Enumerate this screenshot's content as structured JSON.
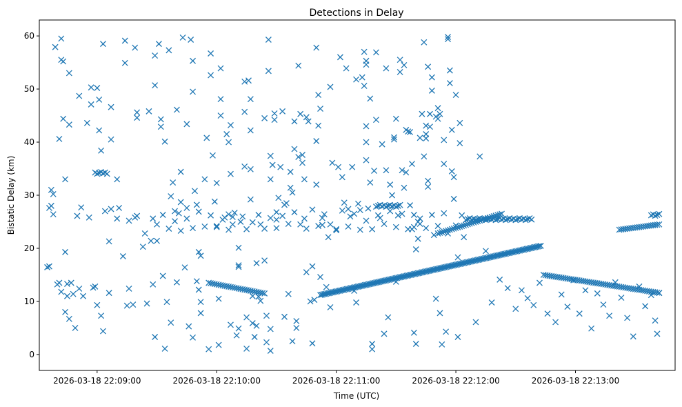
{
  "chart_data": {
    "type": "scatter",
    "title": "Detections in Delay",
    "xlabel": "Time (UTC)",
    "ylabel": "Bistatic Delay (km)",
    "marker": "x",
    "marker_color": "#1f77b4",
    "x_unit": "seconds after 2026-03-18 22:08:00",
    "xlim": [
      31,
      350
    ],
    "ylim": [
      -3,
      63
    ],
    "x_ticks": [
      {
        "value": 60,
        "label": "2026-03-18 22:09:00"
      },
      {
        "value": 120,
        "label": "2026-03-18 22:10:00"
      },
      {
        "value": 180,
        "label": "2026-03-18 22:11:00"
      },
      {
        "value": 240,
        "label": "2026-03-18 22:12:00"
      },
      {
        "value": 300,
        "label": "2026-03-18 22:13:00"
      }
    ],
    "y_ticks": [
      {
        "value": 0,
        "label": "0"
      },
      {
        "value": 10,
        "label": "10"
      },
      {
        "value": 20,
        "label": "20"
      },
      {
        "value": 30,
        "label": "30"
      },
      {
        "value": 40,
        "label": "40"
      },
      {
        "value": 50,
        "label": "50"
      },
      {
        "value": 60,
        "label": "60"
      }
    ],
    "grid": false,
    "legend": "none",
    "tracks": [
      {
        "name": "lower track A",
        "x_start": 116,
        "x_end": 144,
        "y_start": 13.5,
        "y_end": 11.5,
        "step": 1
      },
      {
        "name": "lower track B",
        "x_start": 172,
        "x_end": 283,
        "y_start": 11.2,
        "y_end": 20.5,
        "step": 0.7
      },
      {
        "name": "lower track C",
        "x_start": 284,
        "x_end": 342,
        "y_start": 15.0,
        "y_end": 11.6,
        "step": 1
      },
      {
        "name": "upper track A",
        "x_start": 231,
        "x_end": 263,
        "y_start": 22.8,
        "y_end": 26.5,
        "step": 1
      },
      {
        "name": "upper track B",
        "x_start": 322,
        "x_end": 342,
        "y_start": 23.5,
        "y_end": 24.5,
        "step": 1
      }
    ],
    "clusters": [
      {
        "name": "cluster near 34 km",
        "x_start": 59,
        "x_end": 65,
        "y": 34.2
      },
      {
        "name": "cluster near 28 km",
        "x_start": 200,
        "x_end": 212,
        "y": 28.0
      },
      {
        "name": "cluster near 25.5 km",
        "x_start": 245,
        "x_end": 278,
        "y": 25.5
      },
      {
        "name": "cluster near 26.5 km",
        "x_start": 338,
        "x_end": 342,
        "y": 26.3
      },
      {
        "name": "cluster near 16.6 km",
        "x_start": 35,
        "x_end": 36,
        "y": 16.6
      }
    ],
    "points": [
      [
        36,
        27.6
      ],
      [
        37,
        31.0
      ],
      [
        37,
        28.0
      ],
      [
        38,
        26.4
      ],
      [
        38,
        30.2
      ],
      [
        39,
        57.9
      ],
      [
        40,
        13.2
      ],
      [
        41,
        13.5
      ],
      [
        42,
        11.8
      ],
      [
        41,
        40.6
      ],
      [
        42,
        59.5
      ],
      [
        42,
        55.5
      ],
      [
        43,
        44.4
      ],
      [
        43,
        55.2
      ],
      [
        44,
        33.0
      ],
      [
        46,
        53.0
      ],
      [
        46,
        6.7
      ],
      [
        46,
        43.3
      ],
      [
        44,
        8.0
      ],
      [
        44,
        19.3
      ],
      [
        45,
        11.0
      ],
      [
        45,
        13.3
      ],
      [
        47,
        13.5
      ],
      [
        48,
        11.4
      ],
      [
        49,
        5.0
      ],
      [
        50,
        26.1
      ],
      [
        51,
        12.4
      ],
      [
        51,
        48.7
      ],
      [
        52,
        27.7
      ],
      [
        53,
        11.0
      ],
      [
        55,
        43.6
      ],
      [
        56,
        25.8
      ],
      [
        57,
        50.3
      ],
      [
        57,
        47.1
      ],
      [
        58,
        12.6
      ],
      [
        59,
        12.8
      ],
      [
        60,
        9.3
      ],
      [
        60,
        50.2
      ],
      [
        61,
        48.0
      ],
      [
        61,
        42.2
      ],
      [
        62,
        38.4
      ],
      [
        62,
        7.3
      ],
      [
        63,
        4.4
      ],
      [
        63,
        58.5
      ],
      [
        64,
        27.0
      ],
      [
        66,
        21.3
      ],
      [
        66,
        11.6
      ],
      [
        67,
        40.5
      ],
      [
        67,
        46.6
      ],
      [
        67,
        27.4
      ],
      [
        70,
        33.0
      ],
      [
        70,
        25.6
      ],
      [
        71,
        27.6
      ],
      [
        73,
        18.5
      ],
      [
        74,
        59.1
      ],
      [
        74,
        54.9
      ],
      [
        75,
        9.2
      ],
      [
        76,
        12.4
      ],
      [
        76,
        25.2
      ],
      [
        78,
        9.4
      ],
      [
        79,
        25.8
      ],
      [
        79,
        57.8
      ],
      [
        80,
        45.6
      ],
      [
        80,
        44.6
      ],
      [
        80,
        26.1
      ],
      [
        83,
        20.3
      ],
      [
        84,
        22.8
      ],
      [
        85,
        9.6
      ],
      [
        86,
        45.8
      ],
      [
        87,
        21.4
      ],
      [
        88,
        25.6
      ],
      [
        88,
        13.2
      ],
      [
        89,
        56.3
      ],
      [
        89,
        3.3
      ],
      [
        89,
        50.7
      ],
      [
        90,
        21.4
      ],
      [
        91,
        58.5
      ],
      [
        92,
        42.9
      ],
      [
        92,
        44.3
      ],
      [
        93,
        14.8
      ],
      [
        94,
        40.1
      ],
      [
        94,
        1.1
      ],
      [
        95,
        9.9
      ],
      [
        96,
        57.3
      ],
      [
        97,
        6.0
      ],
      [
        97,
        29.8
      ],
      [
        98,
        32.4
      ],
      [
        99,
        25.1
      ],
      [
        100,
        46.1
      ],
      [
        100,
        13.6
      ],
      [
        101,
        26.6
      ],
      [
        102,
        28.7
      ],
      [
        102,
        34.4
      ],
      [
        103,
        59.7
      ],
      [
        104,
        16.4
      ],
      [
        105,
        43.4
      ],
      [
        105,
        27.6
      ],
      [
        106,
        5.3
      ],
      [
        107,
        59.3
      ],
      [
        108,
        55.3
      ],
      [
        108,
        49.5
      ],
      [
        108,
        3.2
      ],
      [
        109,
        30.8
      ],
      [
        110,
        13.8
      ],
      [
        110,
        28.2
      ],
      [
        111,
        19.3
      ],
      [
        111,
        12.2
      ],
      [
        112,
        18.6
      ],
      [
        112,
        9.9
      ],
      [
        112,
        7.8
      ],
      [
        114,
        33.0
      ],
      [
        115,
        40.8
      ],
      [
        116,
        1.0
      ],
      [
        117,
        56.7
      ],
      [
        117,
        52.6
      ],
      [
        118,
        37.5
      ],
      [
        119,
        28.8
      ],
      [
        120,
        32.3
      ],
      [
        120,
        24.2
      ],
      [
        121,
        1.8
      ],
      [
        121,
        10.5
      ],
      [
        122,
        53.9
      ],
      [
        122,
        45.0
      ],
      [
        122,
        48.1
      ],
      [
        124,
        25.8
      ],
      [
        125,
        41.5
      ],
      [
        126,
        26.4
      ],
      [
        126,
        40.0
      ],
      [
        127,
        43.2
      ],
      [
        127,
        5.6
      ],
      [
        127,
        34.0
      ],
      [
        128,
        24.5
      ],
      [
        128,
        25.9
      ],
      [
        130,
        3.6
      ],
      [
        131,
        4.9
      ],
      [
        131,
        20.1
      ],
      [
        131,
        16.8
      ],
      [
        131,
        16.5
      ],
      [
        133,
        26.0
      ],
      [
        134,
        51.4
      ],
      [
        134,
        45.7
      ],
      [
        134,
        35.4
      ],
      [
        135,
        1.1
      ],
      [
        135,
        7.0
      ],
      [
        136,
        51.6
      ],
      [
        137,
        48.1
      ],
      [
        137,
        34.9
      ],
      [
        137,
        29.2
      ],
      [
        137,
        42.2
      ],
      [
        138,
        11.0
      ],
      [
        138,
        5.9
      ],
      [
        139,
        3.3
      ],
      [
        140,
        17.2
      ],
      [
        140,
        5.4
      ],
      [
        141,
        10.9
      ],
      [
        142,
        10.1
      ],
      [
        142,
        24.5
      ],
      [
        144,
        17.7
      ],
      [
        144,
        44.5
      ],
      [
        145,
        7.3
      ],
      [
        145,
        2.3
      ],
      [
        146,
        59.3
      ],
      [
        146,
        53.4
      ],
      [
        147,
        0.7
      ],
      [
        147,
        4.8
      ],
      [
        147,
        33.0
      ],
      [
        147,
        37.4
      ],
      [
        148,
        35.7
      ],
      [
        149,
        45.4
      ],
      [
        149,
        44.2
      ],
      [
        150,
        26.8
      ],
      [
        150,
        25.4
      ],
      [
        151,
        29.5
      ],
      [
        152,
        35.3
      ],
      [
        153,
        45.8
      ],
      [
        154,
        7.1
      ],
      [
        154,
        28.2
      ],
      [
        155,
        28.5
      ],
      [
        156,
        11.4
      ],
      [
        157,
        34.4
      ],
      [
        157,
        31.4
      ],
      [
        158,
        30.5
      ],
      [
        158,
        2.5
      ],
      [
        159,
        38.7
      ],
      [
        159,
        43.9
      ],
      [
        160,
        5.0
      ],
      [
        160,
        6.3
      ],
      [
        161,
        37.2
      ],
      [
        161,
        54.4
      ],
      [
        162,
        45.3
      ],
      [
        163,
        36.1
      ],
      [
        163,
        37.6
      ],
      [
        164,
        25.6
      ],
      [
        164,
        33.0
      ],
      [
        165,
        15.5
      ],
      [
        165,
        44.7
      ],
      [
        166,
        43.9
      ],
      [
        167,
        10.0
      ],
      [
        168,
        2.1
      ],
      [
        168,
        16.6
      ],
      [
        169,
        10.3
      ],
      [
        170,
        57.8
      ],
      [
        170,
        32.0
      ],
      [
        170,
        40.2
      ],
      [
        171,
        43.1
      ],
      [
        171,
        48.9
      ],
      [
        172,
        46.3
      ],
      [
        172,
        14.6
      ],
      [
        173,
        25.7
      ],
      [
        173,
        24.4
      ],
      [
        175,
        12.7
      ],
      [
        176,
        22.1
      ],
      [
        177,
        8.9
      ],
      [
        177,
        50.4
      ],
      [
        178,
        36.1
      ],
      [
        180,
        23.6
      ],
      [
        181,
        35.3
      ],
      [
        182,
        56.0
      ],
      [
        183,
        33.4
      ],
      [
        184,
        28.6
      ],
      [
        185,
        53.9
      ],
      [
        186,
        27.4
      ],
      [
        187,
        26.0
      ],
      [
        188,
        35.3
      ],
      [
        189,
        12.0
      ],
      [
        190,
        9.8
      ],
      [
        190,
        51.8
      ],
      [
        191,
        28.4
      ],
      [
        192,
        27.2
      ],
      [
        193,
        52.2
      ],
      [
        194,
        50.6
      ],
      [
        194,
        57.0
      ],
      [
        195,
        55.3
      ],
      [
        195,
        54.6
      ],
      [
        195,
        43.0
      ],
      [
        195,
        40.0
      ],
      [
        195,
        36.6
      ],
      [
        196,
        27.5
      ],
      [
        197,
        32.4
      ],
      [
        197,
        48.2
      ],
      [
        198,
        1.0
      ],
      [
        198,
        2.0
      ],
      [
        199,
        34.6
      ],
      [
        200,
        44.2
      ],
      [
        200,
        56.9
      ],
      [
        202,
        25.7
      ],
      [
        203,
        39.6
      ],
      [
        204,
        3.9
      ],
      [
        205,
        34.7
      ],
      [
        205,
        53.9
      ],
      [
        206,
        7.0
      ],
      [
        207,
        32.0
      ],
      [
        208,
        30.0
      ],
      [
        209,
        40.9
      ],
      [
        209,
        40.5
      ],
      [
        210,
        44.4
      ],
      [
        210,
        13.7
      ],
      [
        211,
        26.2
      ],
      [
        212,
        55.5
      ],
      [
        212,
        53.2
      ],
      [
        213,
        34.7
      ],
      [
        214,
        54.5
      ],
      [
        214,
        31.4
      ],
      [
        215,
        42.3
      ],
      [
        215,
        34.3
      ],
      [
        216,
        42.0
      ],
      [
        217,
        41.9
      ],
      [
        217,
        28.1
      ],
      [
        218,
        35.9
      ],
      [
        218,
        23.6
      ],
      [
        219,
        4.1
      ],
      [
        219,
        24.0
      ],
      [
        220,
        2.0
      ],
      [
        220,
        19.8
      ],
      [
        221,
        25.0
      ],
      [
        221,
        21.8
      ],
      [
        222,
        40.8
      ],
      [
        222,
        25.6
      ],
      [
        223,
        45.3
      ],
      [
        224,
        58.8
      ],
      [
        224,
        37.3
      ],
      [
        225,
        43.1
      ],
      [
        225,
        41.5
      ],
      [
        225,
        40.7
      ],
      [
        226,
        54.2
      ],
      [
        226,
        32.7
      ],
      [
        226,
        31.6
      ],
      [
        227,
        45.3
      ],
      [
        227,
        42.9
      ],
      [
        228,
        52.2
      ],
      [
        228,
        49.7
      ],
      [
        229,
        22.5
      ],
      [
        230,
        10.5
      ],
      [
        230,
        44.8
      ],
      [
        231,
        46.4
      ],
      [
        231,
        44.4
      ],
      [
        232,
        45.3
      ],
      [
        232,
        7.8
      ],
      [
        233,
        1.9
      ],
      [
        234,
        40.4
      ],
      [
        234,
        35.9
      ],
      [
        235,
        4.3
      ],
      [
        236,
        22.8
      ],
      [
        236,
        59.8
      ],
      [
        236,
        59.4
      ],
      [
        237,
        53.5
      ],
      [
        237,
        51.1
      ],
      [
        238,
        42.3
      ],
      [
        238,
        34.5
      ],
      [
        239,
        33.4
      ],
      [
        239,
        29.3
      ],
      [
        240,
        48.9
      ],
      [
        240,
        24.3
      ],
      [
        241,
        3.3
      ],
      [
        241,
        18.3
      ],
      [
        242,
        43.6
      ],
      [
        242,
        39.8
      ],
      [
        243,
        26.2
      ],
      [
        244,
        22.1
      ],
      [
        250,
        6.1
      ],
      [
        252,
        37.3
      ],
      [
        255,
        19.5
      ],
      [
        258,
        9.8
      ],
      [
        262,
        14.1
      ],
      [
        266,
        12.5
      ],
      [
        270,
        8.6
      ],
      [
        273,
        12.1
      ],
      [
        276,
        10.6
      ],
      [
        279,
        9.3
      ],
      [
        282,
        13.5
      ],
      [
        286,
        7.7
      ],
      [
        290,
        6.1
      ],
      [
        293,
        11.3
      ],
      [
        296,
        9.0
      ],
      [
        299,
        14.0
      ],
      [
        302,
        7.7
      ],
      [
        305,
        12.1
      ],
      [
        308,
        4.9
      ],
      [
        311,
        11.5
      ],
      [
        314,
        9.4
      ],
      [
        317,
        7.3
      ],
      [
        320,
        13.6
      ],
      [
        323,
        10.7
      ],
      [
        326,
        6.9
      ],
      [
        329,
        3.4
      ],
      [
        332,
        12.8
      ],
      [
        335,
        9.1
      ],
      [
        338,
        11.2
      ],
      [
        340,
        6.4
      ],
      [
        341,
        3.9
      ],
      [
        342,
        11.6
      ],
      [
        90,
        24.5
      ],
      [
        93,
        26.3
      ],
      [
        96,
        23.7
      ],
      [
        99,
        27.0
      ],
      [
        102,
        23.3
      ],
      [
        105,
        25.6
      ],
      [
        108,
        23.8
      ],
      [
        111,
        26.9
      ],
      [
        114,
        24.1
      ],
      [
        117,
        26.2
      ],
      [
        120,
        24.0
      ],
      [
        123,
        25.4
      ],
      [
        126,
        23.5
      ],
      [
        129,
        26.7
      ],
      [
        132,
        25.0
      ],
      [
        135,
        23.6
      ],
      [
        138,
        24.9
      ],
      [
        141,
        26.3
      ],
      [
        144,
        23.7
      ],
      [
        147,
        25.7
      ],
      [
        150,
        23.8
      ],
      [
        153,
        26.1
      ],
      [
        156,
        24.6
      ],
      [
        159,
        26.8
      ],
      [
        162,
        24.5
      ],
      [
        165,
        23.7
      ],
      [
        168,
        27.3
      ],
      [
        171,
        24.2
      ],
      [
        174,
        26.4
      ],
      [
        177,
        24.5
      ],
      [
        180,
        23.4
      ],
      [
        183,
        27.1
      ],
      [
        186,
        24.1
      ],
      [
        189,
        26.5
      ],
      [
        192,
        23.5
      ],
      [
        195,
        25.2
      ],
      [
        198,
        23.6
      ],
      [
        201,
        26.2
      ],
      [
        204,
        24.6
      ],
      [
        207,
        27.0
      ],
      [
        210,
        24.0
      ],
      [
        213,
        26.5
      ],
      [
        216,
        23.6
      ],
      [
        219,
        26.3
      ],
      [
        222,
        24.6
      ],
      [
        225,
        23.8
      ],
      [
        228,
        26.3
      ],
      [
        231,
        24.2
      ],
      [
        234,
        26.6
      ]
    ]
  }
}
